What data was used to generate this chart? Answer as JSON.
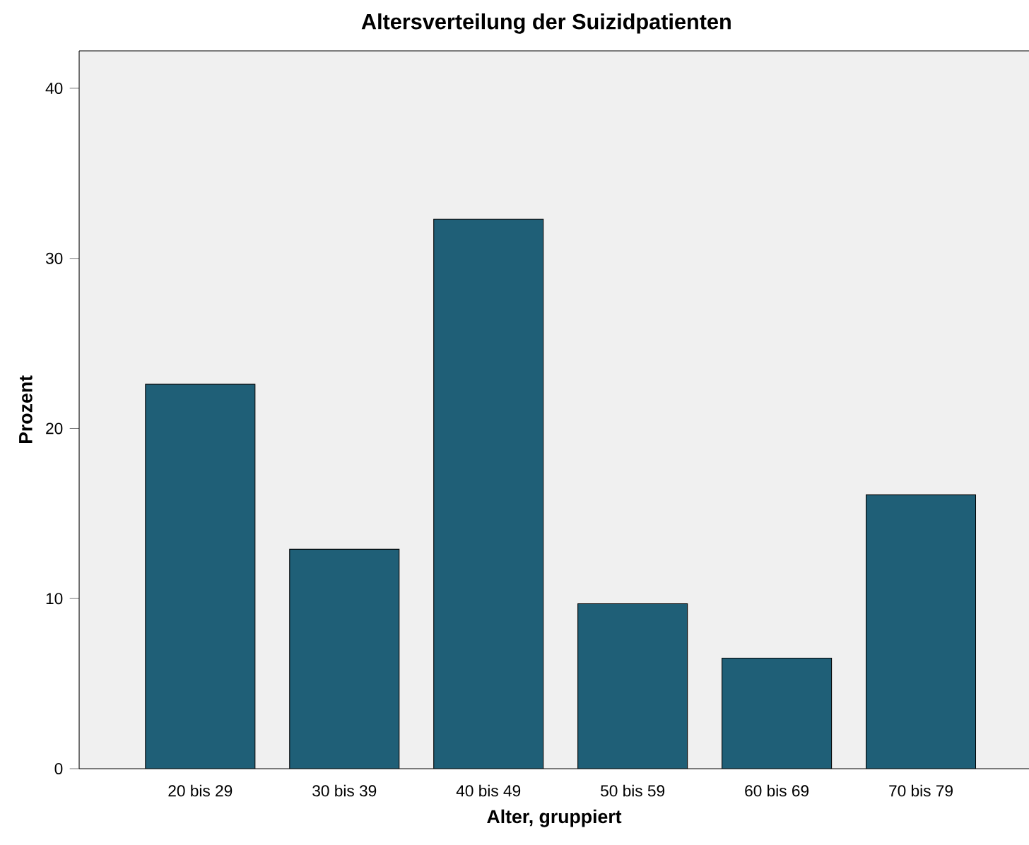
{
  "chart_data": {
    "type": "bar",
    "title": "Altersverteilung der Suizidpatienten",
    "xlabel": "Alter, gruppiert",
    "ylabel": "Prozent",
    "categories": [
      "20 bis 29",
      "30 bis 39",
      "40 bis 49",
      "50 bis 59",
      "60 bis 69",
      "70 bis 79"
    ],
    "values": [
      22.6,
      12.9,
      32.3,
      9.7,
      6.5,
      16.1
    ],
    "color": "#1f5f77",
    "ylim": [
      0,
      42.2
    ],
    "yticks": [
      0,
      10,
      20,
      30,
      40
    ],
    "grid": false
  }
}
